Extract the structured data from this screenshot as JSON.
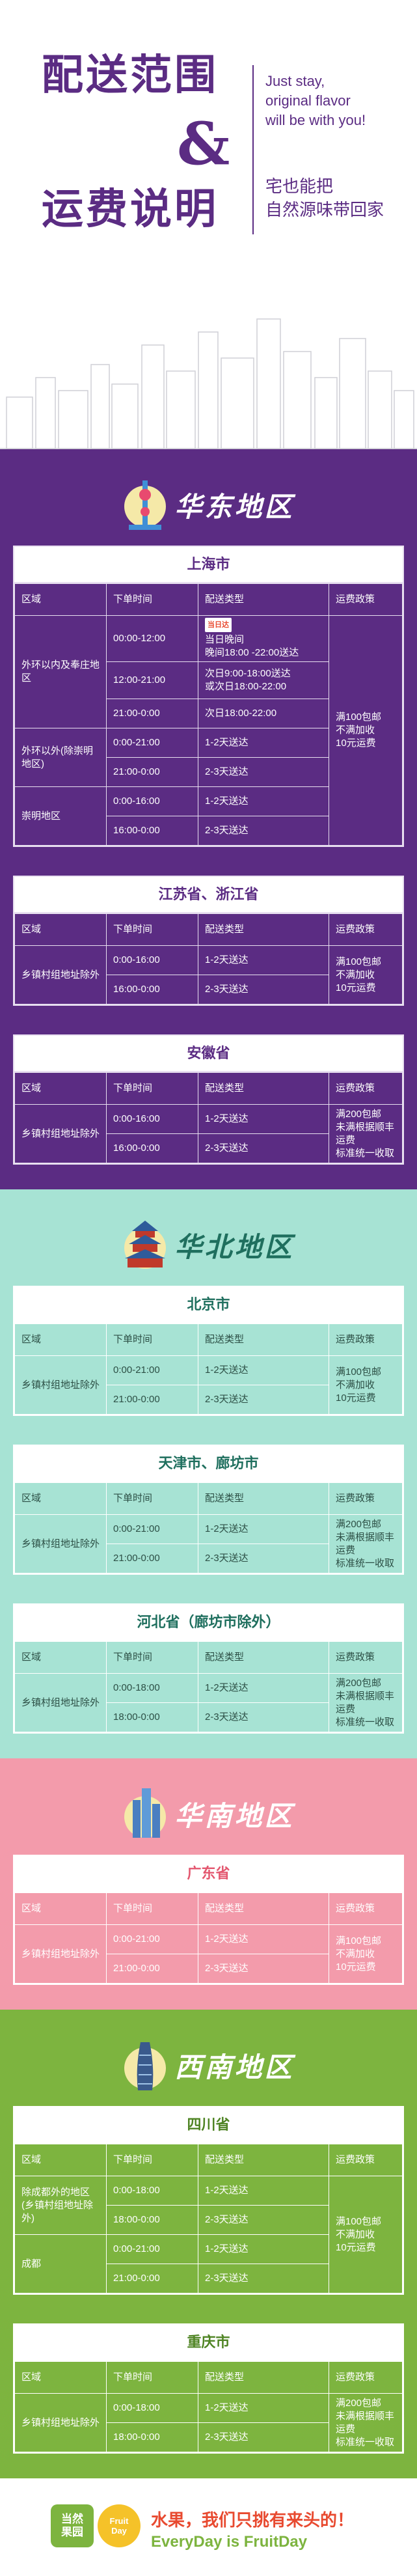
{
  "header": {
    "title_line1": "配送范围",
    "amp": "&",
    "title_line2": "运费说明",
    "en_line1": "Just stay,",
    "en_line2": "original flavor",
    "en_line3": "will be with you!",
    "cn_line1": "宅也能把",
    "cn_line2": "自然源味带回家"
  },
  "columns": {
    "area": "区域",
    "order_time": "下单时间",
    "delivery": "配送类型",
    "shipping": "运费政策"
  },
  "colors": {
    "east": "#5b2c83",
    "north": "#a7e3d4",
    "south": "#f39bab",
    "southwest": "#7db43f"
  },
  "regions": {
    "east": {
      "title": "华东地区",
      "icon": "pearl-tower-icon",
      "shanghai": {
        "title": "上海市",
        "area_inner": "外环以内及奉庄地区",
        "row1_time": "00:00-12:00",
        "row1_badge": "当日达",
        "row1_line1": "当日晚间",
        "row1_line2": "晚间18:00 -22:00送达",
        "row2_time": "12:00-21:00",
        "row2_line1": "次日9:00-18:00送达",
        "row2_line2": "或次日18:00-22:00",
        "row3_time": "21:00-0:00",
        "row3_delivery": "次日18:00-22:00",
        "area_outer": "外环以外(除崇明地区)",
        "row4_time": "0:00-21:00",
        "row4_delivery": "1-2天送达",
        "row5_time": "21:00-0:00",
        "row5_delivery": "2-3天送达",
        "area_chongming": "崇明地区",
        "row6_time": "0:00-16:00",
        "row6_delivery": "1-2天送达",
        "row7_time": "16:00-0:00",
        "row7_delivery": "2-3天送达",
        "shipping_line1": "满100包邮",
        "shipping_line2": "不满加收",
        "shipping_line3": "10元运费"
      },
      "jiangzhe": {
        "title": "江苏省、浙江省",
        "area": "乡镇村组地址除外",
        "row1_time": "0:00-16:00",
        "row1_delivery": "1-2天送达",
        "row2_time": "16:00-0:00",
        "row2_delivery": "2-3天送达",
        "shipping_line1": "满100包邮",
        "shipping_line2": "不满加收",
        "shipping_line3": "10元运费"
      },
      "anhui": {
        "title": "安徽省",
        "area": "乡镇村组地址除外",
        "row1_time": "0:00-16:00",
        "row1_delivery": "1-2天送达",
        "row2_time": "16:00-0:00",
        "row2_delivery": "2-3天送达",
        "shipping_line1": "满200包邮",
        "shipping_line2": "未满根据顺丰运费",
        "shipping_line3": "标准统一收取"
      }
    },
    "north": {
      "title": "华北地区",
      "icon": "temple-of-heaven-icon",
      "beijing": {
        "title": "北京市",
        "area": "乡镇村组地址除外",
        "row1_time": "0:00-21:00",
        "row1_delivery": "1-2天送达",
        "row2_time": "21:00-0:00",
        "row2_delivery": "2-3天送达",
        "shipping_line1": "满100包邮",
        "shipping_line2": "不满加收",
        "shipping_line3": "10元运费"
      },
      "tianjin": {
        "title": "天津市、廊坊市",
        "area": "乡镇村组地址除外",
        "row1_time": "0:00-21:00",
        "row1_delivery": "1-2天送达",
        "row2_time": "21:00-0:00",
        "row2_delivery": "2-3天送达",
        "shipping_line1": "满200包邮",
        "shipping_line2": "未满根据顺丰运费",
        "shipping_line3": "标准统一收取"
      },
      "hebei": {
        "title": "河北省（廊坊市除外）",
        "area": "乡镇村组地址除外",
        "row1_time": "0:00-18:00",
        "row1_delivery": "1-2天送达",
        "row2_time": "18:00-0:00",
        "row2_delivery": "2-3天送达",
        "shipping_line1": "满200包邮",
        "shipping_line2": "未满根据顺丰运费",
        "shipping_line3": "标准统一收取"
      }
    },
    "south": {
      "title": "华南地区",
      "icon": "skyscraper-icon",
      "guangdong": {
        "title": "广东省",
        "area": "乡镇村组地址除外",
        "row1_time": "0:00-21:00",
        "row1_delivery": "1-2天送达",
        "row2_time": "21:00-0:00",
        "row2_delivery": "2-3天送达",
        "shipping_line1": "满100包邮",
        "shipping_line2": "不满加收",
        "shipping_line3": "10元运费"
      }
    },
    "southwest": {
      "title": "西南地区",
      "icon": "twisted-tower-icon",
      "sichuan": {
        "title": "四川省",
        "area1": "除成都外的地区(乡镇村组地址除外)",
        "row1_time": "0:00-18:00",
        "row1_delivery": "1-2天送达",
        "row2_time": "18:00-0:00",
        "row2_delivery": "2-3天送达",
        "area2": "成都",
        "row3_time": "0:00-21:00",
        "row3_delivery": "1-2天送达",
        "row4_time": "21:00-0:00",
        "row4_delivery": "2-3天送达",
        "shipping_line1": "满100包邮",
        "shipping_line2": "不满加收",
        "shipping_line3": "10元运费"
      },
      "chongqing": {
        "title": "重庆市",
        "area": "乡镇村组地址除外",
        "row1_time": "0:00-18:00",
        "row1_delivery": "1-2天送达",
        "row2_time": "18:00-0:00",
        "row2_delivery": "2-3天送达",
        "shipping_line1": "满200包邮",
        "shipping_line2": "未满根据顺丰运费",
        "shipping_line3": "标准统一收取"
      }
    }
  },
  "footer": {
    "logo_line1": "当然",
    "logo_line2": "果园",
    "logo2_line1": "Fruit",
    "logo2_line2": "Day",
    "slogan_cn": "水果，我们只挑有来头的！",
    "slogan_en": "EveryDay is FruitDay"
  }
}
